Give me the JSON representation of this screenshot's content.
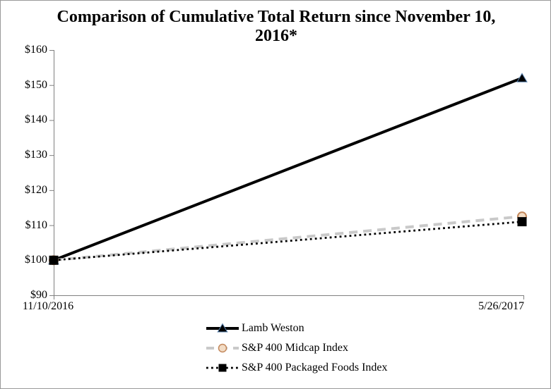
{
  "header": {
    "title_line1": "Comparison of Cumulative Total Return since November 10,",
    "title_line2": "2016*"
  },
  "chart_data": {
    "type": "line",
    "title": "Comparison of Cumulative Total Return since November 10, 2016*",
    "x": [
      "11/10/2016",
      "5/26/2017"
    ],
    "series": [
      {
        "name": "Lamb Weston",
        "values": [
          100,
          152
        ],
        "color": "#000000",
        "style": "solid",
        "marker": "triangle",
        "marker_fill": "#000000",
        "marker_stroke": "#5b84b1"
      },
      {
        "name": "S&P 400 Midcap Index",
        "values": [
          100,
          112.5
        ],
        "color": "#c9c9c9",
        "style": "dashed",
        "marker": "circle",
        "marker_fill": "#f2dcc5",
        "marker_stroke": "#c3885c"
      },
      {
        "name": "S&P 400 Packaged Foods Index",
        "values": [
          100,
          111
        ],
        "color": "#000000",
        "style": "dotted",
        "marker": "square",
        "marker_fill": "#000000",
        "marker_stroke": "#000000"
      }
    ],
    "ylim": [
      90,
      160
    ],
    "y_tick_step": 10,
    "y_ticks": [
      "$90",
      "$100",
      "$110",
      "$120",
      "$130",
      "$140",
      "$150",
      "$160"
    ],
    "xlabel": "",
    "ylabel": "",
    "grid": false,
    "legend_position": "bottom",
    "axis_color": "#808080"
  }
}
